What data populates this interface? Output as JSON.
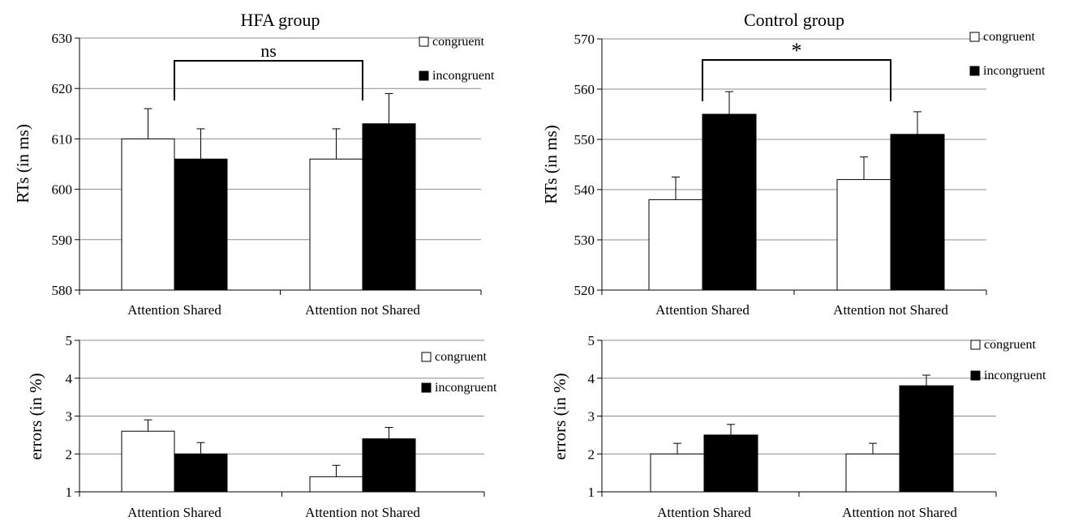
{
  "chart_data": [
    {
      "type": "bar",
      "title": "HFA group",
      "xlabel": "",
      "ylabel": "RTs (in ms)",
      "ylim": [
        580,
        630
      ],
      "ytick_step": 10,
      "categories": [
        "Attention Shared",
        "Attention not Shared"
      ],
      "series": [
        {
          "name": "congruent",
          "color": "#ffffff",
          "values": [
            610,
            606
          ],
          "errors": [
            6,
            6
          ]
        },
        {
          "name": "incongruent",
          "color": "#000000",
          "values": [
            606,
            613
          ],
          "errors": [
            6,
            6
          ]
        }
      ],
      "annotation": {
        "text": "ns",
        "between": [
          "Attention Shared",
          "Attention not Shared"
        ]
      },
      "legend": "top-right",
      "grid": true
    },
    {
      "type": "bar",
      "title": "Control group",
      "xlabel": "",
      "ylabel": "RTs (in ms)",
      "ylim": [
        520,
        570
      ],
      "ytick_step": 10,
      "categories": [
        "Attention Shared",
        "Attention not Shared"
      ],
      "series": [
        {
          "name": "congruent",
          "color": "#ffffff",
          "values": [
            538,
            542
          ],
          "errors": [
            4.5,
            4.5
          ]
        },
        {
          "name": "incongruent",
          "color": "#000000",
          "values": [
            555,
            551
          ],
          "errors": [
            4.5,
            4.5
          ]
        }
      ],
      "annotation": {
        "text": "*",
        "between": [
          "Attention Shared",
          "Attention not Shared"
        ]
      },
      "legend": "top-right",
      "grid": true
    },
    {
      "type": "bar",
      "title": "",
      "xlabel": "",
      "ylabel": "errors (in %)",
      "ylim": [
        1,
        5
      ],
      "ytick_step": 1,
      "categories": [
        "Attention Shared",
        "Attention not Shared"
      ],
      "series": [
        {
          "name": "congruent",
          "color": "#ffffff",
          "values": [
            2.6,
            1.4
          ],
          "errors": [
            0.3,
            0.3
          ]
        },
        {
          "name": "incongruent",
          "color": "#000000",
          "values": [
            2.0,
            2.4
          ],
          "errors": [
            0.3,
            0.3
          ]
        }
      ],
      "legend": "right",
      "grid": true
    },
    {
      "type": "bar",
      "title": "",
      "xlabel": "",
      "ylabel": "errors (in %)",
      "ylim": [
        1,
        5
      ],
      "ytick_step": 1,
      "categories": [
        "Attention Shared",
        "Attention not Shared"
      ],
      "series": [
        {
          "name": "congruent",
          "color": "#ffffff",
          "values": [
            2.0,
            2.0
          ],
          "errors": [
            0.28,
            0.28
          ]
        },
        {
          "name": "incongruent",
          "color": "#000000",
          "values": [
            2.5,
            3.8
          ],
          "errors": [
            0.28,
            0.28
          ]
        }
      ],
      "legend": "top-right",
      "grid": true
    }
  ]
}
